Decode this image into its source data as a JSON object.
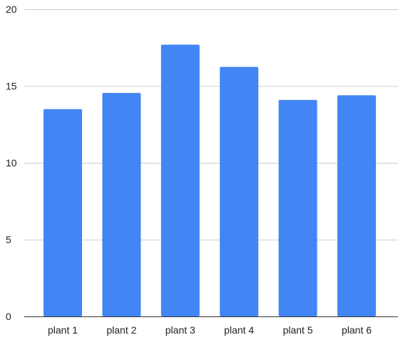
{
  "chart_data": {
    "type": "bar",
    "categories": [
      "plant 1",
      "plant 2",
      "plant 3",
      "plant 4",
      "plant 5",
      "plant 6"
    ],
    "values": [
      13.5,
      14.55,
      17.7,
      16.25,
      14.1,
      14.4
    ],
    "title": "",
    "xlabel": "",
    "ylabel": "",
    "ylim": [
      0,
      20
    ],
    "yticks": [
      "0",
      "5",
      "10",
      "15",
      "20"
    ],
    "grid": true,
    "legend": "none"
  },
  "colors": {
    "bar": "#4285f4",
    "grid": "#cccccc",
    "axis": "#333333",
    "text": "#222222"
  }
}
